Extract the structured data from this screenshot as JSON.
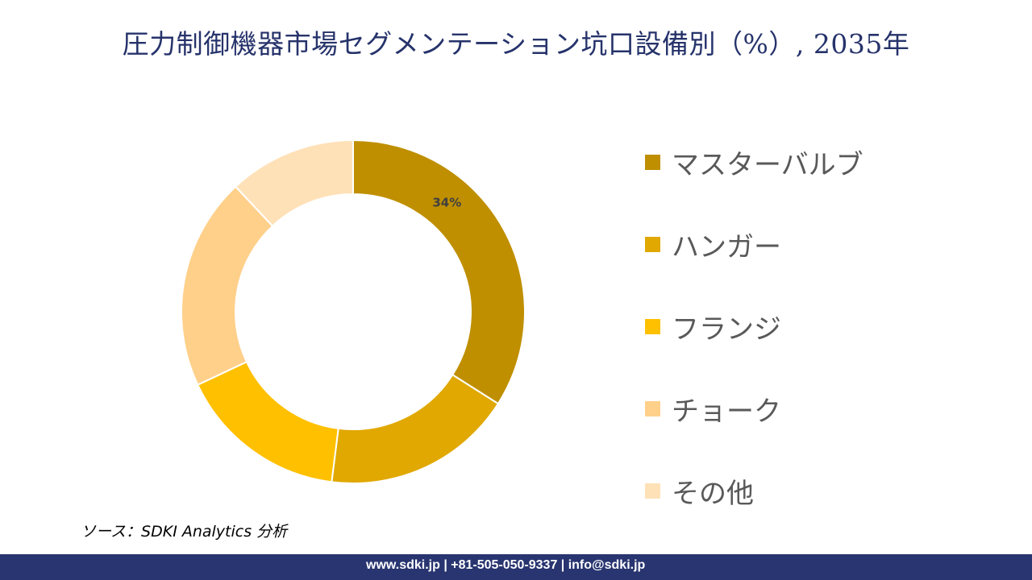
{
  "chart_data": {
    "type": "pie",
    "variant": "donut",
    "title": "圧力制御機器市場セグメンテーション坑口設備別（%）, 2035年",
    "categories": [
      "マスターバルブ",
      "ハンガー",
      "フランジ",
      "チョーク",
      "その他"
    ],
    "values": [
      34,
      18,
      16,
      20,
      12
    ],
    "colors": [
      "#BF8F00",
      "#E0A800",
      "#FFC000",
      "#FFD08A",
      "#FFE1B8"
    ],
    "data_labels": [
      {
        "category": "マスターバルブ",
        "text": "34%"
      }
    ],
    "legend_position": "right"
  },
  "source": "ソース：SDKI Analytics 分析",
  "footer": "www.sdki.jp | +81-505-050-9337 | info@sdki.jp"
}
